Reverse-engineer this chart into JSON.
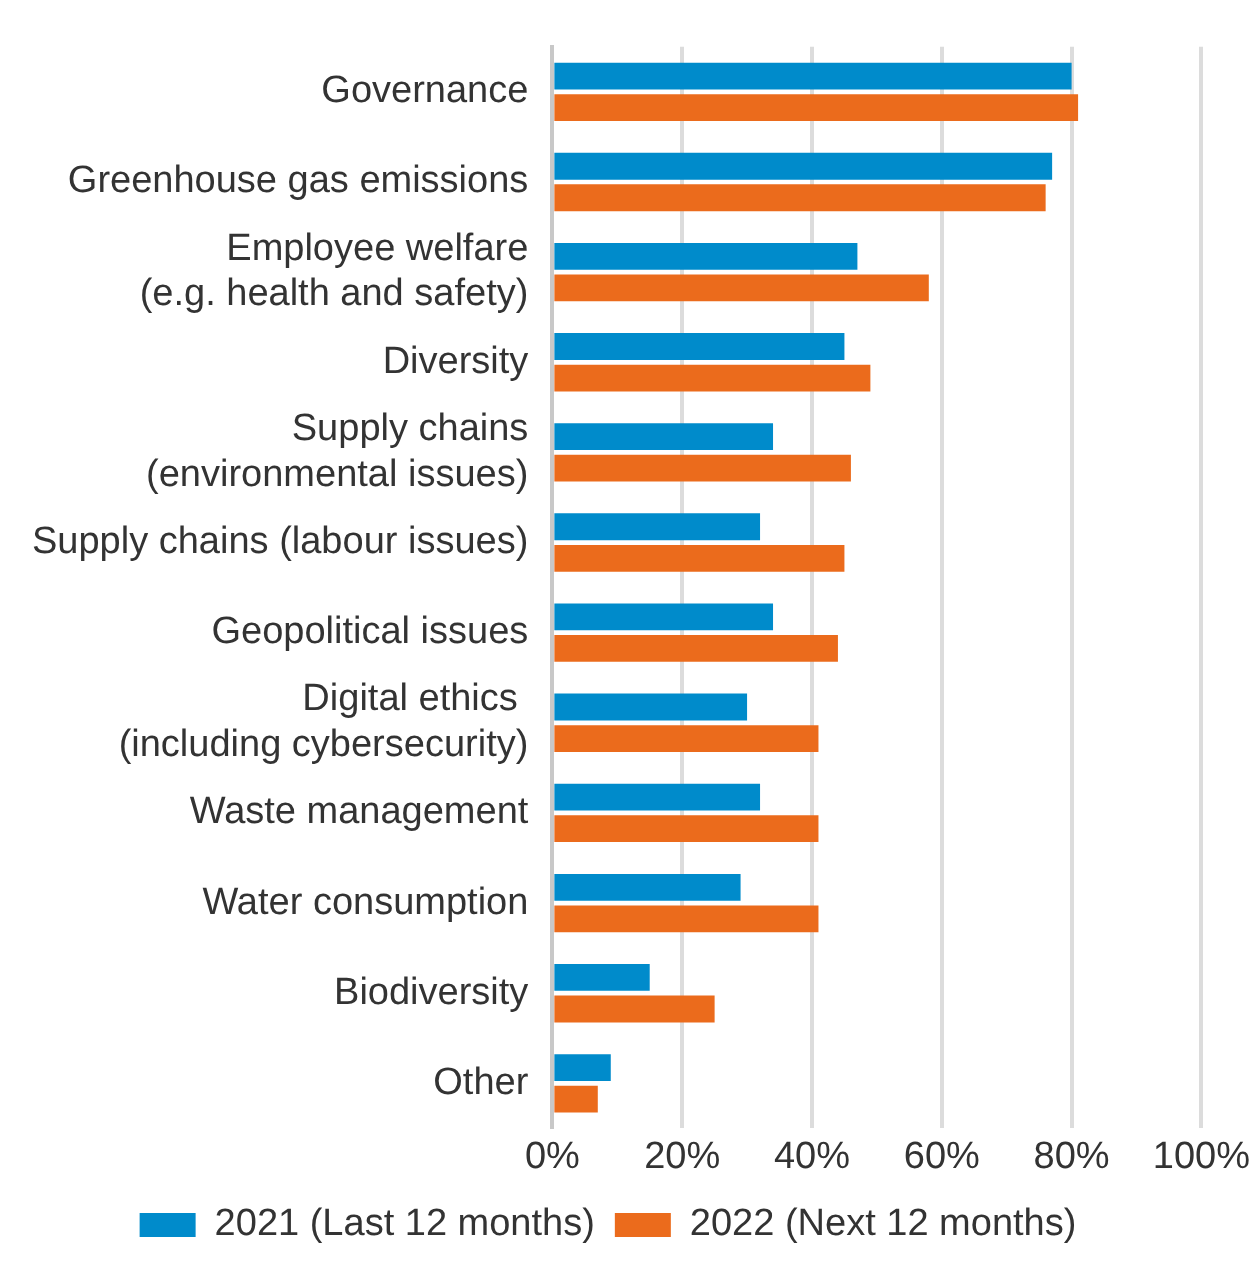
{
  "chart_data": {
    "type": "bar",
    "orientation": "horizontal",
    "categories": [
      "Governance",
      "Greenhouse gas emissions",
      "Employee welfare\n(e.g. health and safety)",
      "Diversity",
      "Supply chains\n(environmental issues)",
      "Supply chains (labour issues)",
      "Geopolitical issues",
      "Digital ethics \n(including cybersecurity)",
      "Waste management",
      "Water consumption",
      "Biodiversity",
      "Other"
    ],
    "series": [
      {
        "name": "2021 (Last 12 months)",
        "color": "#008bcb",
        "values": [
          80,
          77,
          47,
          45,
          34,
          32,
          34,
          30,
          32,
          29,
          15,
          9
        ]
      },
      {
        "name": "2022 (Next 12 months)",
        "color": "#eb6b1c",
        "values": [
          81,
          76,
          58,
          49,
          46,
          45,
          44,
          41,
          41,
          41,
          25,
          7
        ]
      }
    ],
    "xlim": [
      0,
      100
    ],
    "xticks": [
      {
        "value": 0,
        "label": "0%"
      },
      {
        "value": 20,
        "label": "20%"
      },
      {
        "value": 40,
        "label": "40%"
      },
      {
        "value": 60,
        "label": "60%"
      },
      {
        "value": 80,
        "label": "80%"
      },
      {
        "value": 100,
        "label": "100%"
      }
    ],
    "grid": "x",
    "legend": "bottom"
  }
}
